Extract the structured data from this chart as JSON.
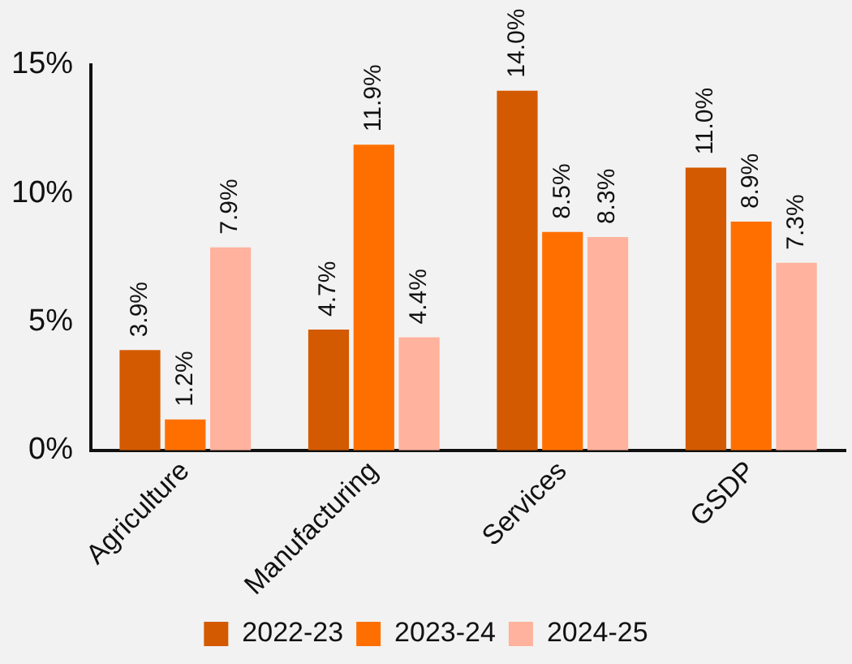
{
  "chart_data": {
    "type": "bar",
    "categories": [
      "Agriculture",
      "Manufacturing",
      "Services",
      "GSDP"
    ],
    "series": [
      {
        "name": "2022-23",
        "color": "#d35a00",
        "values": [
          3.9,
          4.7,
          14.0,
          11.0
        ],
        "value_labels": [
          "3.9%",
          "4.7%",
          "14.0%",
          "11.0%"
        ]
      },
      {
        "name": "2023-24",
        "color": "#ff6f00",
        "values": [
          1.2,
          11.9,
          8.5,
          8.9
        ],
        "value_labels": [
          "1.2%",
          "11.9%",
          "8.5%",
          "8.9%"
        ]
      },
      {
        "name": "2024-25",
        "color": "#ffb29d",
        "values": [
          7.9,
          4.4,
          8.3,
          7.3
        ],
        "value_labels": [
          "7.9%",
          "4.4%",
          "8.3%",
          "7.3%"
        ]
      }
    ],
    "ylim": [
      0,
      15
    ],
    "yticks": [
      {
        "value": 0,
        "label": "0%"
      },
      {
        "value": 5,
        "label": "5%"
      },
      {
        "value": 10,
        "label": "10%"
      },
      {
        "value": 15,
        "label": "15%"
      }
    ],
    "grid": false,
    "legend": "bottom"
  }
}
